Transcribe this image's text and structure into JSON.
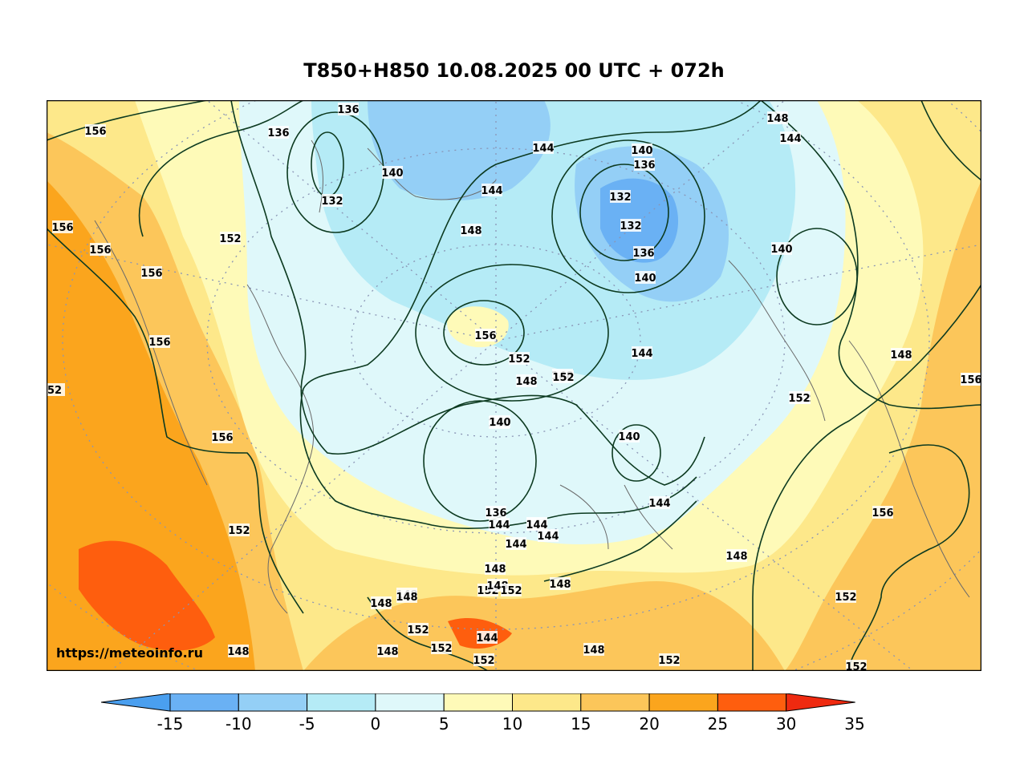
{
  "title": "T850+H850 10.08.2025 00 UTC + 072h",
  "watermark": "https://meteoinfo.ru",
  "colorbar": {
    "ticks": [
      "-15",
      "-10",
      "-5",
      "0",
      "5",
      "10",
      "15",
      "20",
      "25",
      "30",
      "35"
    ],
    "colors": [
      "#4a9fef",
      "#6ab1f4",
      "#94cff6",
      "#b5ebf6",
      "#dff8fa",
      "#fefab8",
      "#fde88a",
      "#fcc65a",
      "#fba51d",
      "#fe5e0e",
      "#ef2a10"
    ]
  },
  "contour_labels": [
    "136",
    "136",
    "132",
    "140",
    "144",
    "144",
    "140",
    "136",
    "132",
    "132",
    "136",
    "140",
    "148",
    "152",
    "148",
    "144",
    "140",
    "140",
    "144",
    "144",
    "148",
    "148",
    "152",
    "152",
    "152",
    "152",
    "156",
    "156",
    "156",
    "156",
    "156",
    "156",
    "156",
    "152",
    "156",
    "152",
    "152",
    "148",
    "152",
    "144",
    "140",
    "140",
    "144",
    "136",
    "144",
    "144",
    "144",
    "148",
    "148",
    "152",
    "148",
    "148",
    "148",
    "152",
    "148",
    "152",
    "144",
    "148",
    "148",
    "152",
    "152",
    "148",
    "148",
    "152",
    "52",
    "156"
  ]
}
